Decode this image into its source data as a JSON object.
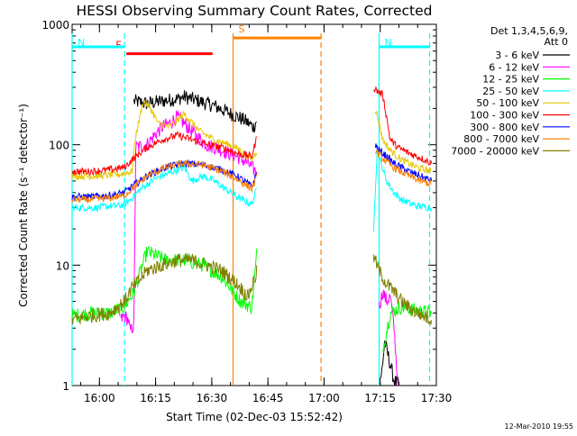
{
  "chart_data": {
    "type": "line",
    "title": "HESSI Observing Summary Count Rates, Corrected",
    "xlabel": "Start Time (02-Dec-03 15:52:42)",
    "ylabel": "Corrected Count Rate (s⁻¹ detector⁻¹)",
    "y_scale": "log",
    "ylim": [
      1,
      1000
    ],
    "xlim_minutes": [
      0,
      97.3
    ],
    "x_ticks": [
      {
        "label": "16:00",
        "minute": 7.3
      },
      {
        "label": "16:15",
        "minute": 22.3
      },
      {
        "label": "16:30",
        "minute": 37.3
      },
      {
        "label": "16:45",
        "minute": 52.3
      },
      {
        "label": "17:00",
        "minute": 67.3
      },
      {
        "label": "17:15",
        "minute": 82.3
      },
      {
        "label": "17:30",
        "minute": 97.3
      }
    ],
    "y_ticks": [
      {
        "label": "1",
        "value": 1
      },
      {
        "label": "10",
        "value": 10
      },
      {
        "label": "100",
        "value": 100
      },
      {
        "label": "1000",
        "value": 1000
      }
    ],
    "legend_header": [
      "Det 1,3,4,5,6,9,",
      "Att 0"
    ],
    "legend_position": "top-right",
    "gap_minutes": [
      50.5,
      80.5
    ],
    "series": [
      {
        "name": "3 - 6 keV",
        "color": "#000000",
        "x": [
          16.5,
          20,
          24,
          28,
          30,
          34,
          38,
          41,
          46,
          48.5,
          49.5,
          82.5,
          83.5,
          84,
          85,
          86,
          87.5
        ],
        "y": [
          230,
          220,
          230,
          240,
          250,
          230,
          210,
          190,
          160,
          140,
          165,
          1.1,
          2.3,
          2.0,
          1.5,
          1.1,
          1.0
        ]
      },
      {
        "name": "6 - 12 keV",
        "color": "#ff00ff",
        "x": [
          13,
          14,
          15,
          15.5,
          16.5,
          17,
          20,
          22,
          24,
          26,
          28,
          30,
          33,
          36,
          40,
          44,
          47,
          49,
          49.5,
          82,
          83,
          84,
          85,
          86,
          87
        ],
        "y": [
          3.5,
          3.8,
          3.5,
          2.8,
          3.2,
          95,
          100,
          120,
          140,
          150,
          170,
          150,
          120,
          100,
          90,
          80,
          70,
          60,
          62,
          4.5,
          6,
          5,
          5.5,
          3.0,
          1.0
        ]
      },
      {
        "name": "12 - 25 keV",
        "color": "#00ff00",
        "x": [
          0,
          5,
          10,
          14,
          16.5,
          20,
          25,
          30,
          35,
          40,
          45,
          48,
          49.5,
          83,
          85,
          88,
          92,
          96
        ],
        "y": [
          3.8,
          4,
          4,
          4.5,
          6,
          13,
          11,
          11,
          10,
          8,
          5,
          4.5,
          14,
          2,
          4,
          4.5,
          4.2,
          4.0
        ]
      },
      {
        "name": "25 - 50 keV",
        "color": "#00ffff",
        "x": [
          0,
          3,
          7,
          10,
          12,
          14,
          16,
          18,
          22,
          27,
          30,
          32,
          35,
          38,
          40,
          44,
          48,
          49.5,
          80.5,
          81.5,
          82.5,
          84,
          86,
          88,
          92,
          96
        ],
        "y": [
          30,
          30,
          30,
          31,
          31,
          32,
          36,
          42,
          52,
          60,
          65,
          50,
          55,
          50,
          45,
          37,
          32,
          45,
          20,
          90,
          70,
          50,
          40,
          35,
          31,
          30
        ]
      },
      {
        "name": "50 - 100 keV",
        "color": "#e6c800",
        "x": [
          0,
          3,
          7,
          10,
          13,
          16,
          17,
          19,
          21,
          23,
          26,
          30,
          34,
          38,
          42,
          45,
          48,
          49.5,
          81,
          82,
          83,
          85,
          88,
          92,
          96
        ],
        "y": [
          55,
          55,
          55,
          56,
          57,
          60,
          120,
          230,
          200,
          150,
          140,
          180,
          130,
          110,
          100,
          90,
          75,
          90,
          200,
          150,
          110,
          90,
          75,
          65,
          60
        ]
      },
      {
        "name": "100 - 300 keV",
        "color": "#ff0000",
        "x": [
          0,
          5,
          10,
          14,
          17,
          20,
          24,
          28,
          32,
          36,
          40,
          44,
          48,
          49.5,
          80.5,
          81.5,
          83,
          85,
          87,
          90,
          93,
          96
        ],
        "y": [
          60,
          60,
          62,
          65,
          80,
          95,
          110,
          120,
          110,
          100,
          95,
          85,
          80,
          120,
          300,
          280,
          260,
          110,
          95,
          85,
          78,
          70
        ]
      },
      {
        "name": "300 - 800 keV",
        "color": "#0000ff",
        "x": [
          0,
          5,
          10,
          14,
          16,
          20,
          25,
          30,
          35,
          40,
          44,
          48,
          49.5,
          81,
          82,
          84,
          86,
          90,
          93,
          96
        ],
        "y": [
          37,
          37,
          38,
          40,
          45,
          55,
          65,
          70,
          68,
          62,
          55,
          45,
          60,
          100,
          90,
          80,
          70,
          60,
          55,
          50
        ]
      },
      {
        "name": "800 - 7000 keV",
        "color": "#ff8000",
        "x": [
          0,
          5,
          10,
          14,
          16,
          20,
          25,
          30,
          35,
          40,
          44,
          48,
          49.5,
          81,
          82,
          84,
          86,
          90,
          93,
          96
        ],
        "y": [
          35,
          35,
          36,
          38,
          43,
          55,
          65,
          70,
          68,
          60,
          52,
          43,
          55,
          90,
          82,
          72,
          64,
          55,
          50,
          47
        ]
      },
      {
        "name": "7000 - 20000 keV",
        "color": "#808000",
        "x": [
          0,
          5,
          10,
          14,
          16,
          18,
          20,
          24,
          28,
          32,
          36,
          40,
          44,
          47,
          49.5,
          80.5,
          82,
          84,
          86,
          88,
          91,
          94,
          96
        ],
        "y": [
          3.5,
          3.8,
          4,
          5,
          6.5,
          7.5,
          9,
          10,
          11,
          11,
          10,
          9,
          7,
          5.5,
          9,
          12,
          9,
          7,
          6,
          5,
          4.2,
          3.8,
          3.5
        ]
      }
    ],
    "flags": [
      {
        "label": "F",
        "color": "#ff0000",
        "x_start": 14.5,
        "x_end": 37.5,
        "value": 570
      },
      {
        "label": "N",
        "color": "#00ffff",
        "x_start": 0,
        "x_end": 14.0,
        "value": 650
      },
      {
        "label": "N",
        "color": "#00ffff",
        "x_start": 82.0,
        "x_end": 95.5,
        "value": 650
      },
      {
        "label": "S",
        "color": "#ff8000",
        "x_start": 43.0,
        "x_end": 66.5,
        "value": 770
      }
    ],
    "vertical_markers": [
      {
        "color": "#00ffff",
        "x": 14.0,
        "style": "dashed"
      },
      {
        "color": "#00ffff",
        "x": 82.0,
        "style": "solid"
      },
      {
        "color": "#00ffff",
        "x": 95.5,
        "style": "dashed"
      },
      {
        "color": "#ff8000",
        "x": 43.0,
        "style": "solid"
      },
      {
        "color": "#ff8000",
        "x": 66.5,
        "style": "dashed"
      },
      {
        "color": "#00ffff",
        "x": 0,
        "style": "solid"
      }
    ]
  },
  "footer_date": "12-Mar-2010 19:55"
}
